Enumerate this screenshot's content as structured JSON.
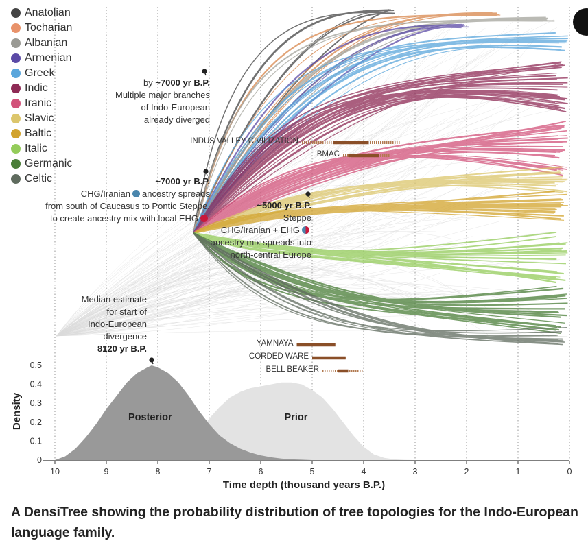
{
  "legend": [
    {
      "label": "Anatolian",
      "color": "#444444"
    },
    {
      "label": "Tocharian",
      "color": "#e8926a"
    },
    {
      "label": "Albanian",
      "color": "#9a9a94"
    },
    {
      "label": "Armenian",
      "color": "#5b4aa6"
    },
    {
      "label": "Greek",
      "color": "#5aa6dc"
    },
    {
      "label": "Indic",
      "color": "#8e2a55"
    },
    {
      "label": "Iranic",
      "color": "#d2527a"
    },
    {
      "label": "Slavic",
      "color": "#dcc66c"
    },
    {
      "label": "Baltic",
      "color": "#d2a32c"
    },
    {
      "label": "Italic",
      "color": "#94cc5a"
    },
    {
      "label": "Germanic",
      "color": "#4a7e38"
    },
    {
      "label": "Celtic",
      "color": "#5f6b5e"
    }
  ],
  "annotations": {
    "diverged": {
      "line1_pre": "by ",
      "line1_bold": "~7000 yr B.P.",
      "line2": "Multiple major branches",
      "line3": "of Indo-European",
      "line4": "already diverged"
    },
    "chg": {
      "title": "~7000 yr B.P.",
      "line1a": "CHG/Iranian",
      "line1b": "ancestry spreads",
      "line2": "from south of Caucasus to Pontic Steppe,",
      "line3": "to create ancestry mix with local EHG"
    },
    "steppe": {
      "title": "~5000 yr B.P.",
      "line1": "Steppe",
      "line2a": "CHG/Iranian + EHG",
      "line3": "ancestry mix spreads into",
      "line4": "north-central Europe"
    },
    "median": {
      "line1": "Median estimate",
      "line2": "for start of",
      "line3": "Indo-European",
      "line4": "divergence",
      "value": "8120 yr B.P."
    }
  },
  "eras": [
    {
      "label": "INDUS VALLEY CIVILIZATION",
      "core": [
        4.6,
        3.9
      ],
      "range": [
        5.2,
        3.3
      ]
    },
    {
      "label": "BMAC",
      "core": [
        4.3,
        3.7
      ],
      "range": [
        4.4,
        3.5
      ]
    },
    {
      "label": "YAMNAYA",
      "core": [
        5.3,
        4.55
      ],
      "range": [
        5.3,
        4.55
      ]
    },
    {
      "label": "CORDED WARE",
      "core": [
        5.0,
        4.35
      ],
      "range": [
        5.0,
        4.35
      ]
    },
    {
      "label": "BELL BEAKER",
      "core": [
        4.5,
        4.3
      ],
      "range": [
        4.8,
        4.0
      ]
    }
  ],
  "chart_data": {
    "type": "area",
    "xlabel": "Time depth (thousand years B.P.)",
    "ylabel": "Density",
    "xlim": [
      10,
      0
    ],
    "x_ticks": [
      "10",
      "9",
      "8",
      "7",
      "6",
      "5",
      "4",
      "3",
      "2",
      "1",
      "0"
    ],
    "ylim": [
      0,
      0.5
    ],
    "y_ticks": [
      "0",
      "0.1",
      "0.2",
      "0.3",
      "0.4",
      "0.5"
    ],
    "grid": "dotted vertical",
    "series": [
      {
        "name": "Posterior",
        "color": "#999999",
        "x": [
          10,
          9.8,
          9.6,
          9.4,
          9.2,
          9.0,
          8.8,
          8.6,
          8.4,
          8.2,
          8.12,
          8.0,
          7.8,
          7.6,
          7.4,
          7.2,
          7.0,
          6.8,
          6.6,
          6.4,
          6.2,
          6.0,
          5.8,
          5.6,
          5.4,
          5.2,
          5.0
        ],
        "y": [
          0.0,
          0.02,
          0.06,
          0.12,
          0.19,
          0.27,
          0.34,
          0.41,
          0.46,
          0.49,
          0.5,
          0.49,
          0.46,
          0.41,
          0.34,
          0.26,
          0.19,
          0.13,
          0.09,
          0.06,
          0.04,
          0.025,
          0.015,
          0.008,
          0.004,
          0.002,
          0.0
        ]
      },
      {
        "name": "Prior",
        "color": "#e3e3e3",
        "x": [
          10,
          9.0,
          8.0,
          7.4,
          7.2,
          7.0,
          6.8,
          6.6,
          6.4,
          6.2,
          6.0,
          5.8,
          5.6,
          5.4,
          5.2,
          5.0,
          4.8,
          4.6,
          4.4,
          4.2,
          4.0,
          3.8,
          3.6,
          3.4,
          3.2,
          3.0
        ],
        "y": [
          0.0,
          0.0,
          0.01,
          0.06,
          0.14,
          0.22,
          0.28,
          0.33,
          0.36,
          0.38,
          0.39,
          0.4,
          0.41,
          0.41,
          0.4,
          0.37,
          0.33,
          0.27,
          0.2,
          0.13,
          0.07,
          0.03,
          0.012,
          0.004,
          0.001,
          0.0
        ]
      }
    ],
    "annotation_median": 8.12
  },
  "caption": "A DensiTree showing the probability distribution of tree topologies for the Indo-European language family."
}
